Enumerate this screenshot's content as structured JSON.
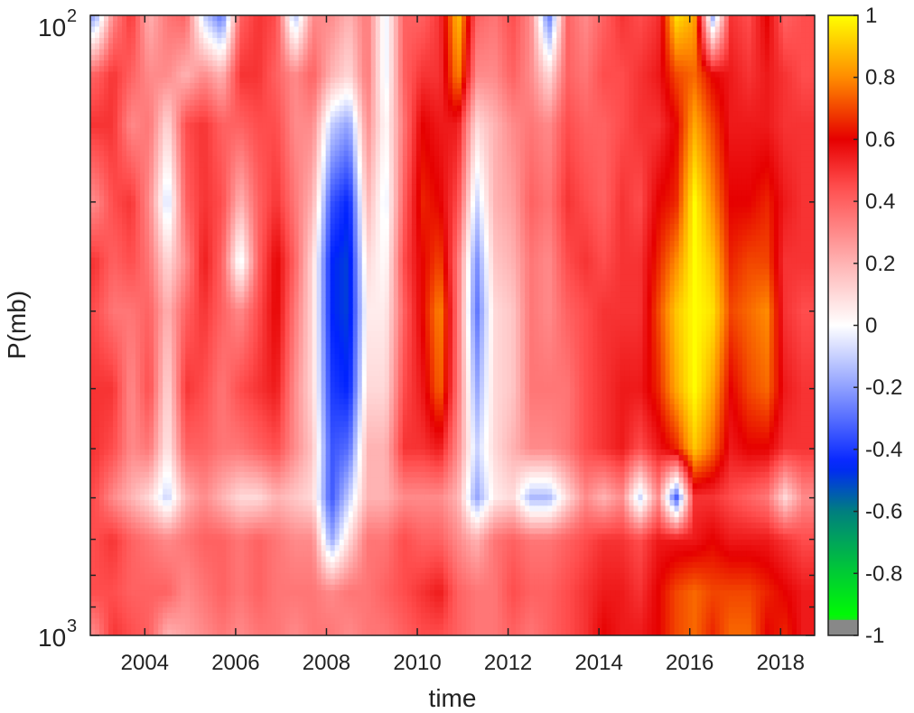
{
  "chart_data": {
    "type": "heatmap",
    "xlabel": "time",
    "ylabel": "P(mb)",
    "xlim": [
      2002.8,
      2018.75
    ],
    "ylim": [
      1000,
      100
    ],
    "yscale": "log",
    "x_ticks": [
      "2004",
      "2006",
      "2008",
      "2010",
      "2012",
      "2014",
      "2016",
      "2018"
    ],
    "y_tick_labels": [
      {
        "base": "10",
        "exp": "2"
      },
      {
        "base": "10",
        "exp": "3"
      }
    ],
    "colorbar": {
      "range": [
        -1,
        1
      ],
      "tick_labels": [
        "1",
        "0.8",
        "0.6",
        "0.4",
        "0.2",
        "0",
        "-0.2",
        "-0.4",
        "-0.6",
        "-0.8",
        "-1"
      ],
      "colormap": [
        {
          "v": -1.0,
          "color": "#888888"
        },
        {
          "v": -0.95,
          "color": "#00ff00"
        },
        {
          "v": -0.8,
          "color": "#00cc33"
        },
        {
          "v": -0.6,
          "color": "#007f7f"
        },
        {
          "v": -0.45,
          "color": "#0022ff"
        },
        {
          "v": -0.2,
          "color": "#8fa0ff"
        },
        {
          "v": 0.0,
          "color": "#ffffff"
        },
        {
          "v": 0.2,
          "color": "#ffb3b3"
        },
        {
          "v": 0.45,
          "color": "#ff4d4d"
        },
        {
          "v": 0.6,
          "color": "#e60000"
        },
        {
          "v": 0.8,
          "color": "#ff8c00"
        },
        {
          "v": 1.0,
          "color": "#ffff00"
        }
      ]
    },
    "time_columns": [
      2002.9,
      2003.3,
      2003.7,
      2004.1,
      2004.5,
      2004.9,
      2005.3,
      2005.7,
      2006.1,
      2006.5,
      2006.9,
      2007.3,
      2007.7,
      2008.1,
      2008.5,
      2008.9,
      2009.3,
      2009.7,
      2010.1,
      2010.5,
      2010.9,
      2011.3,
      2011.7,
      2012.1,
      2012.5,
      2012.9,
      2013.3,
      2013.7,
      2014.1,
      2014.5,
      2014.9,
      2015.3,
      2015.7,
      2016.1,
      2016.5,
      2016.9,
      2017.3,
      2017.7,
      2018.1,
      2018.5
    ],
    "pressure_levels": [
      100,
      125,
      150,
      200,
      250,
      300,
      400,
      500,
      600,
      700,
      850,
      1000
    ],
    "values": [
      [
        -0.2,
        0.4,
        0.5,
        0.3,
        0.5,
        0.45,
        0.5,
        0.5,
        0.45,
        0.45,
        0.45,
        0.3
      ],
      [
        0.3,
        0.5,
        0.5,
        0.45,
        0.4,
        0.35,
        0.5,
        0.45,
        0.3,
        0.5,
        0.45,
        0.5
      ],
      [
        0.5,
        0.4,
        0.3,
        0.5,
        0.45,
        0.35,
        0.3,
        0.3,
        0.2,
        0.4,
        0.4,
        0.45
      ],
      [
        0.2,
        0.3,
        0.35,
        0.3,
        0.35,
        0.4,
        0.45,
        0.35,
        0.1,
        0.35,
        0.4,
        0.4
      ],
      [
        0.35,
        0.3,
        0.1,
        -0.1,
        0.1,
        0.2,
        0.1,
        0.05,
        -0.1,
        0.3,
        0.4,
        0.2
      ],
      [
        0.4,
        0.2,
        0.45,
        0.4,
        0.3,
        0.4,
        0.5,
        0.4,
        0.2,
        0.35,
        0.3,
        0.25
      ],
      [
        -0.1,
        0.3,
        0.5,
        0.5,
        0.55,
        0.5,
        0.45,
        0.4,
        0.3,
        0.4,
        0.35,
        0.3
      ],
      [
        -0.3,
        0.2,
        0.4,
        0.45,
        0.4,
        0.4,
        0.35,
        0.35,
        0.2,
        0.4,
        0.4,
        0.35
      ],
      [
        0.4,
        0.5,
        0.4,
        0.2,
        -0.05,
        0.3,
        0.45,
        0.35,
        0.1,
        0.35,
        0.35,
        0.3
      ],
      [
        0.5,
        0.5,
        0.45,
        0.4,
        0.4,
        0.45,
        0.5,
        0.4,
        0.1,
        0.4,
        0.4,
        0.35
      ],
      [
        0.45,
        0.4,
        0.45,
        0.5,
        0.6,
        0.6,
        0.55,
        0.45,
        0.2,
        0.35,
        0.35,
        0.35
      ],
      [
        -0.15,
        0.3,
        0.3,
        0.35,
        0.4,
        0.35,
        0.3,
        0.3,
        0.15,
        0.3,
        0.35,
        0.3
      ],
      [
        0.3,
        0.4,
        0.3,
        0.2,
        0.1,
        0.1,
        0.1,
        0.15,
        0.1,
        0.3,
        0.35,
        0.35
      ],
      [
        0.3,
        0.2,
        -0.1,
        -0.35,
        -0.45,
        -0.45,
        -0.4,
        -0.35,
        -0.35,
        -0.2,
        0.3,
        0.35
      ],
      [
        0.2,
        0.1,
        -0.2,
        -0.45,
        -0.5,
        -0.5,
        -0.45,
        -0.3,
        -0.1,
        0.1,
        0.35,
        0.3
      ],
      [
        0.35,
        0.35,
        0.3,
        0.2,
        0.1,
        0.05,
        0.1,
        0.2,
        0.2,
        0.35,
        0.35,
        0.35
      ],
      [
        -0.05,
        -0.05,
        0.0,
        -0.05,
        0.0,
        0.05,
        0.1,
        0.2,
        0.2,
        0.35,
        0.4,
        0.35
      ],
      [
        0.4,
        0.4,
        0.35,
        0.4,
        0.45,
        0.4,
        0.45,
        0.5,
        0.3,
        0.45,
        0.45,
        0.4
      ],
      [
        0.4,
        0.5,
        0.6,
        0.65,
        0.6,
        0.6,
        0.55,
        0.5,
        0.3,
        0.4,
        0.5,
        0.45
      ],
      [
        0.5,
        0.5,
        0.55,
        0.6,
        0.7,
        0.8,
        0.75,
        0.55,
        0.3,
        0.4,
        0.55,
        0.45
      ],
      [
        0.9,
        0.8,
        0.55,
        0.45,
        0.35,
        0.35,
        0.35,
        0.3,
        0.2,
        0.3,
        0.4,
        0.4
      ],
      [
        0.4,
        0.3,
        0.1,
        -0.1,
        -0.25,
        -0.3,
        -0.2,
        -0.1,
        -0.2,
        0.2,
        0.35,
        0.35
      ],
      [
        0.35,
        0.3,
        0.2,
        0.2,
        0.15,
        0.1,
        0.1,
        0.1,
        0.05,
        0.35,
        0.35,
        0.35
      ],
      [
        0.45,
        0.4,
        0.3,
        0.25,
        0.2,
        0.15,
        0.15,
        0.2,
        0.1,
        0.4,
        0.45,
        0.4
      ],
      [
        0.3,
        0.3,
        0.35,
        0.4,
        0.35,
        0.35,
        0.35,
        0.3,
        -0.15,
        0.35,
        0.4,
        0.35
      ],
      [
        -0.3,
        0.1,
        0.3,
        0.35,
        0.3,
        0.3,
        0.35,
        0.3,
        -0.15,
        0.35,
        0.4,
        0.4
      ],
      [
        0.4,
        0.4,
        0.45,
        0.5,
        0.45,
        0.4,
        0.35,
        0.35,
        0.1,
        0.4,
        0.45,
        0.45
      ],
      [
        0.3,
        0.35,
        0.4,
        0.45,
        0.5,
        0.45,
        0.45,
        0.45,
        0.3,
        0.45,
        0.5,
        0.5
      ],
      [
        0.4,
        0.45,
        0.4,
        0.4,
        0.45,
        0.5,
        0.5,
        0.5,
        0.2,
        0.5,
        0.55,
        0.6
      ],
      [
        0.5,
        0.45,
        0.45,
        0.5,
        0.5,
        0.5,
        0.55,
        0.55,
        0.3,
        0.5,
        0.55,
        0.55
      ],
      [
        0.45,
        0.5,
        0.5,
        0.45,
        0.5,
        0.5,
        0.55,
        0.45,
        -0.1,
        0.45,
        0.5,
        0.55
      ],
      [
        0.5,
        0.55,
        0.5,
        0.6,
        0.65,
        0.7,
        0.65,
        0.55,
        0.3,
        0.55,
        0.6,
        0.6
      ],
      [
        0.95,
        0.7,
        0.6,
        0.65,
        0.8,
        0.9,
        0.85,
        0.65,
        -0.35,
        0.55,
        0.7,
        0.7
      ],
      [
        0.85,
        0.75,
        0.85,
        1.0,
        1.0,
        1.0,
        1.0,
        0.9,
        0.5,
        0.55,
        0.75,
        0.75
      ],
      [
        -0.2,
        0.6,
        0.7,
        0.8,
        0.9,
        0.95,
        0.85,
        0.75,
        0.5,
        0.6,
        0.7,
        0.65
      ],
      [
        0.5,
        0.55,
        0.55,
        0.6,
        0.65,
        0.7,
        0.6,
        0.55,
        0.45,
        0.55,
        0.7,
        0.75
      ],
      [
        0.45,
        0.5,
        0.55,
        0.6,
        0.7,
        0.75,
        0.7,
        0.6,
        0.4,
        0.55,
        0.7,
        0.75
      ],
      [
        0.6,
        0.55,
        0.55,
        0.65,
        0.7,
        0.8,
        0.75,
        0.6,
        0.35,
        0.55,
        0.65,
        0.6
      ],
      [
        0.4,
        0.5,
        0.5,
        0.55,
        0.5,
        0.5,
        0.55,
        0.5,
        0.1,
        0.5,
        0.6,
        0.65
      ],
      [
        0.45,
        0.45,
        0.5,
        0.5,
        0.5,
        0.45,
        0.5,
        0.5,
        0.3,
        0.45,
        0.55,
        0.55
      ]
    ]
  }
}
